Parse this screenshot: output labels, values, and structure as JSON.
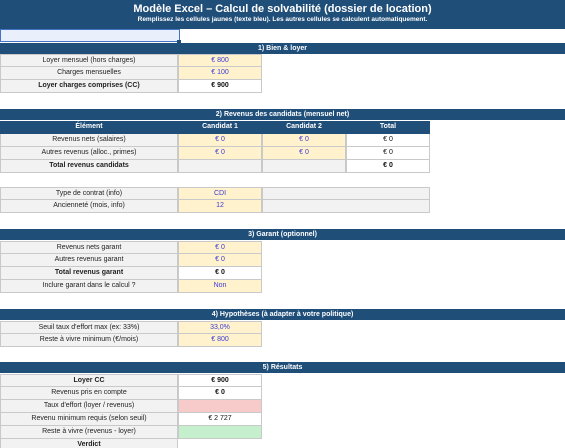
{
  "header": {
    "title": "Modèle Excel – Calcul de solvabilité (dossier de location)",
    "subtitle": "Remplissez les cellules jaunes (texte bleu). Les autres cellules se calculent automatiquement."
  },
  "sections": {
    "s1": "1) Bien & loyer",
    "s2": "2) Revenus des candidats (mensuel net)",
    "s3": "3) Garant (optionnel)",
    "s4": "4) Hypothèses (à adapter à votre politique)",
    "s5": "5) Résultats"
  },
  "bien": {
    "loyer_label": "Loyer mensuel (hors charges)",
    "loyer_value": "€ 800",
    "charges_label": "Charges mensuelles",
    "charges_value": "€ 100",
    "cc_label": "Loyer charges comprises (CC)",
    "cc_value": "€ 900"
  },
  "revenus": {
    "headers": [
      "Élément",
      "Candidat 1",
      "Candidat 2",
      "Total"
    ],
    "nets_label": "Revenus nets (salaires)",
    "nets_c1": "€ 0",
    "nets_c2": "€ 0",
    "nets_total": "€ 0",
    "autres_label": "Autres revenus (alloc., primes)",
    "autres_c1": "€ 0",
    "autres_c2": "€ 0",
    "autres_total": "€ 0",
    "total_label": "Total revenus candidats",
    "total_value": "€ 0",
    "contrat_label": "Type de contrat (info)",
    "contrat_c1": "CDI",
    "contrat_c2": "",
    "anciennete_label": "Ancienneté (mois, info)",
    "anciennete_c1": "12",
    "anciennete_c2": ""
  },
  "garant": {
    "nets_label": "Revenus nets garant",
    "nets_value": "€ 0",
    "autres_label": "Autres revenus garant",
    "autres_value": "€ 0",
    "total_label": "Total revenus garant",
    "total_value": "€ 0",
    "inclure_label": "Inclure garant dans le calcul ?",
    "inclure_value": "Non"
  },
  "hypotheses": {
    "seuil_label": "Seuil taux d'effort max (ex: 33%)",
    "seuil_value": "33,0%",
    "reste_label": "Reste à vivre minimum (€/mois)",
    "reste_value": "€ 800"
  },
  "resultats": {
    "loyer_label": "Loyer CC",
    "loyer_value": "€ 900",
    "revenus_label": "Revenus pris en compte",
    "revenus_value": "€ 0",
    "taux_label": "Taux d'effort (loyer / revenus)",
    "taux_value": "",
    "min_label": "Revenu minimum requis (selon seuil)",
    "min_value": "€ 2 727",
    "reste_label": "Reste à vivre (revenus - loyer)",
    "reste_value": "",
    "verdict_label": "Verdict"
  },
  "colors": {
    "header_blue": "#1f4e79",
    "input_yellow": "#fff2cc",
    "input_text": "#3b3bd6",
    "bad": "#f8cbcb",
    "good": "#c6efce"
  }
}
